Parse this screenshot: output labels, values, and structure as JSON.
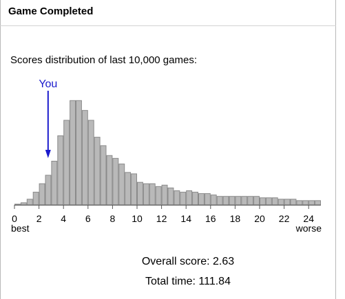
{
  "window": {
    "title": "Game Completed"
  },
  "chart_data": {
    "type": "bar",
    "title": "Scores distribution of last 10,000 games:",
    "x": [
      0.0,
      0.5,
      1.0,
      1.5,
      2.0,
      2.5,
      3.0,
      3.5,
      4.0,
      4.5,
      5.0,
      5.5,
      6.0,
      6.5,
      7.0,
      7.5,
      8.0,
      8.5,
      9.0,
      9.5,
      10.0,
      10.5,
      11.0,
      11.5,
      12.0,
      12.5,
      13.0,
      13.5,
      14.0,
      14.5,
      15.0,
      15.5,
      16.0,
      16.5,
      17.0,
      17.5,
      18.0,
      18.5,
      19.0,
      19.5,
      20.0,
      20.5,
      21.0,
      21.5,
      22.0,
      22.5,
      23.0,
      23.5,
      24.0,
      24.5
    ],
    "values": [
      0.5,
      1.5,
      4,
      9,
      15,
      21,
      31,
      49,
      60,
      74,
      74,
      67,
      60,
      48,
      42,
      35,
      33,
      29,
      23,
      22,
      16,
      15,
      15,
      13,
      14,
      12,
      10,
      9,
      10,
      9,
      8,
      8,
      7,
      6,
      6,
      6,
      6,
      6,
      6,
      6,
      5,
      5,
      5,
      4,
      4,
      4,
      3,
      3,
      3,
      3
    ],
    "xticks": [
      "0",
      "2",
      "4",
      "6",
      "8",
      "10",
      "12",
      "14",
      "16",
      "18",
      "20",
      "22",
      "24"
    ],
    "xmin_label": "best",
    "xmax_label": "worse",
    "xlim": [
      0,
      25
    ],
    "grid": false,
    "marker": {
      "label": "You",
      "x": 2.63,
      "color": "#1a1acc"
    },
    "bar_fill": "#b9b9b9",
    "bar_stroke": "#8a8a8a"
  },
  "results": {
    "overall_label": "Overall score:",
    "overall_value": "2.63",
    "time_label": "Total time:",
    "time_value": "111.84"
  }
}
